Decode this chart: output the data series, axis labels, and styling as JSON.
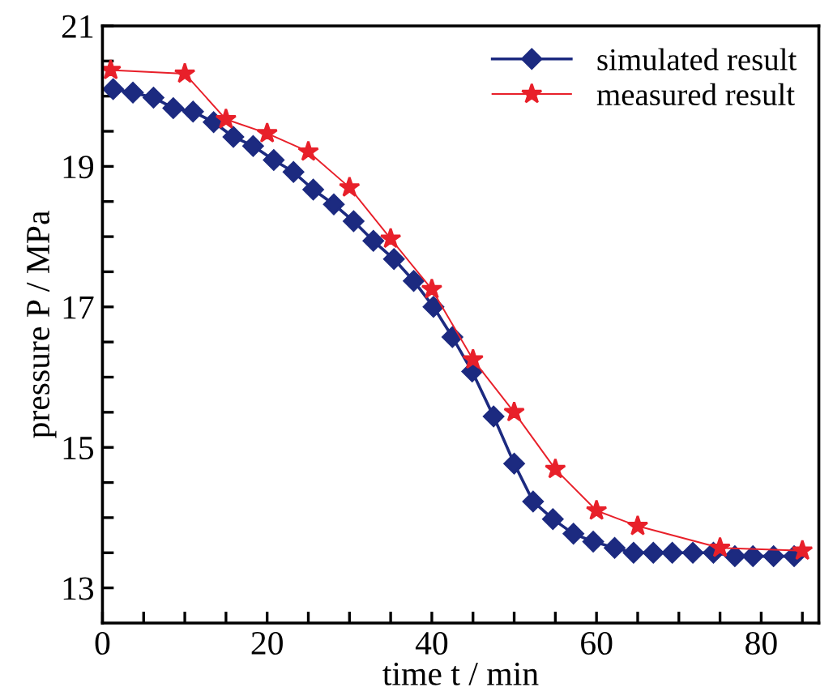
{
  "chart_data": {
    "type": "line",
    "xlabel": "time t / min",
    "ylabel": "pressure P / MPa",
    "xlim": [
      0,
      87
    ],
    "ylim": [
      12.5,
      21
    ],
    "xticks": [
      0,
      {
        "value": 5,
        "label": null
      },
      {
        "value": 10,
        "label": null
      },
      {
        "value": 15,
        "label": null
      },
      20,
      {
        "value": 25,
        "label": null
      },
      {
        "value": 30,
        "label": null
      },
      {
        "value": 35,
        "label": null
      },
      40,
      {
        "value": 45,
        "label": null
      },
      {
        "value": 50,
        "label": null
      },
      {
        "value": 55,
        "label": null
      },
      60,
      {
        "value": 65,
        "label": null
      },
      {
        "value": 70,
        "label": null
      },
      {
        "value": 75,
        "label": null
      },
      80,
      {
        "value": 85,
        "label": null
      }
    ],
    "yticks": [
      13,
      {
        "value": 13.5,
        "label": null
      },
      {
        "value": 14,
        "label": null
      },
      {
        "value": 14.5,
        "label": null
      },
      15,
      {
        "value": 15.5,
        "label": null
      },
      {
        "value": 16,
        "label": null
      },
      {
        "value": 16.5,
        "label": null
      },
      17,
      {
        "value": 17.5,
        "label": null
      },
      {
        "value": 18,
        "label": null
      },
      {
        "value": 18.5,
        "label": null
      },
      19,
      {
        "value": 19.5,
        "label": null
      },
      {
        "value": 20,
        "label": null
      },
      {
        "value": 20.5,
        "label": null
      },
      21
    ],
    "grid": false,
    "legend": "top right",
    "line_style": "solid",
    "series": [
      {
        "name": "simulated result",
        "color": "#1c2a80",
        "marker": "diamond",
        "x": [
          1.3,
          3.7,
          6.2,
          8.6,
          11.0,
          13.5,
          15.9,
          18.3,
          20.8,
          23.2,
          25.6,
          28.1,
          30.5,
          32.9,
          35.4,
          37.8,
          40.2,
          42.5,
          44.9,
          47.5,
          50.0,
          52.3,
          54.7,
          57.2,
          59.6,
          62.2,
          64.5,
          66.9,
          69.2,
          71.7,
          74.2,
          76.8,
          79.0,
          81.5,
          84.0
        ],
        "values": [
          20.1,
          20.05,
          19.98,
          19.83,
          19.78,
          19.63,
          19.42,
          19.29,
          19.09,
          18.92,
          18.67,
          18.46,
          18.22,
          17.94,
          17.68,
          17.37,
          17.0,
          16.57,
          16.08,
          15.44,
          14.77,
          14.23,
          13.98,
          13.77,
          13.66,
          13.57,
          13.5,
          13.5,
          13.5,
          13.5,
          13.5,
          13.45,
          13.45,
          13.45,
          13.45
        ]
      },
      {
        "name": "measured result",
        "color": "#e8202a",
        "marker": "star",
        "x": [
          1,
          10,
          15,
          20,
          25,
          30,
          35,
          40,
          45,
          50,
          55,
          60,
          65,
          75,
          85
        ],
        "values": [
          20.37,
          20.32,
          19.67,
          19.47,
          19.21,
          18.7,
          17.97,
          17.25,
          16.25,
          15.5,
          14.69,
          14.1,
          13.88,
          13.57,
          13.53
        ]
      }
    ]
  }
}
